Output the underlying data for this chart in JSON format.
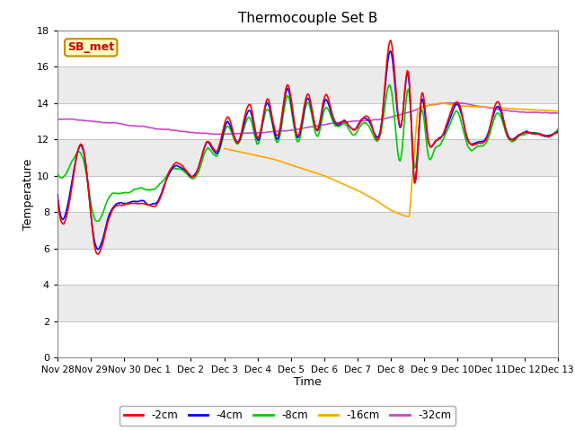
{
  "title": "Thermocouple Set B",
  "xlabel": "Time",
  "ylabel": "Temperature",
  "ylim": [
    0,
    18
  ],
  "yticks": [
    0,
    2,
    4,
    6,
    8,
    10,
    12,
    14,
    16,
    18
  ],
  "annotation_text": "SB_met",
  "annotation_color": "#CC0000",
  "annotation_bg": "#FFFFC0",
  "annotation_edge": "#CC8800",
  "fig_bg": "#FFFFFF",
  "plot_bg": "#FFFFFF",
  "band_colors": [
    "#EBEBEB",
    "#FFFFFF"
  ],
  "line_colors": {
    "-2cm": "#FF0000",
    "-4cm": "#0000FF",
    "-8cm": "#00CC00",
    "-16cm": "#FFA500",
    "-32cm": "#CC44CC"
  },
  "line_width": 1.2,
  "xtick_labels": [
    "Nov 28",
    "Nov 29",
    "Nov 30",
    "Dec 1",
    "Dec 2",
    "Dec 3",
    "Dec 4",
    "Dec 5",
    "Dec 6",
    "Dec 7",
    "Dec 8",
    "Dec 9",
    "Dec 10",
    "Dec 11",
    "Dec 12",
    "Dec 13"
  ],
  "num_points": 480
}
